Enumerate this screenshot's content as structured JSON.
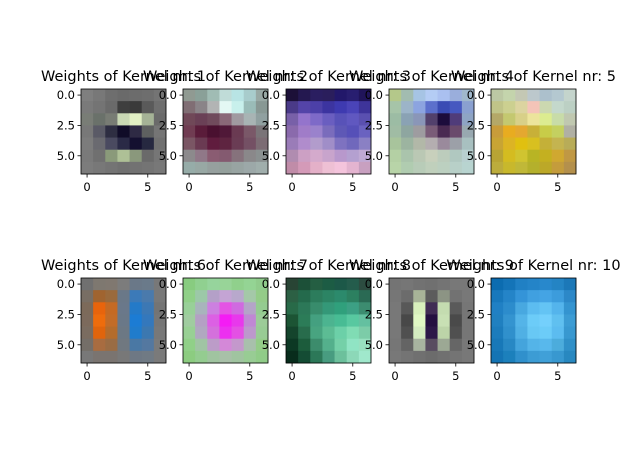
{
  "chart_data": {
    "type": "heatmap",
    "grid": false,
    "xlim": [
      -0.5,
      6.5
    ],
    "ylim": [
      6.5,
      -0.5
    ],
    "xticks": [
      "0",
      "5"
    ],
    "yticks": [
      "0.0",
      "2.5",
      "5.0"
    ],
    "kernels": [
      {
        "title": "Weights of Kernel nr: 1",
        "pixels": [
          [
            "#7f7f7f",
            "#787878",
            "#6e6e6e",
            "#6a6a6a",
            "#6c6c6c",
            "#6e6e6e",
            "#747474"
          ],
          [
            "#7a7a7a",
            "#747474",
            "#6a6a6a",
            "#3e3e3e",
            "#3a3a3a",
            "#5a5a5a",
            "#6e6e6e"
          ],
          [
            "#797d76",
            "#6a716a",
            "#787c74",
            "#c9d8b4",
            "#e2f0c4",
            "#a5b396",
            "#6a6a6a"
          ],
          [
            "#787878",
            "#5a5a66",
            "#2e2e42",
            "#100c28",
            "#2e2a44",
            "#5e6060",
            "#757575"
          ],
          [
            "#7c7c7c",
            "#6a6a70",
            "#4a4a60",
            "#2a2a46",
            "#141030",
            "#262840",
            "#707070"
          ],
          [
            "#7a7a7a",
            "#707070",
            "#8a9a7a",
            "#aec096",
            "#8a987c",
            "#6a6a6a",
            "#767676"
          ],
          [
            "#7c7c7c",
            "#787878",
            "#747474",
            "#707070",
            "#727272",
            "#747474",
            "#787878"
          ]
        ]
      },
      {
        "title": "Weights of Kernel nr: 2",
        "pixels": [
          [
            "#909a92",
            "#8aa098",
            "#a0bcb4",
            "#c0dcd8",
            "#b8e4e4",
            "#a8cccc",
            "#98a8a4"
          ],
          [
            "#806e74",
            "#8a8488",
            "#b2b4b4",
            "#e4f8f4",
            "#c8f0ec",
            "#9abcb8",
            "#889894"
          ],
          [
            "#704858",
            "#6a4056",
            "#704a5c",
            "#8a6878",
            "#a09aa0",
            "#a8b4b4",
            "#90a0a0"
          ],
          [
            "#703c52",
            "#5a1c3a",
            "#4a1030",
            "#501838",
            "#6a3a52",
            "#7a5868",
            "#7a7478"
          ],
          [
            "#7a5664",
            "#6a3a52",
            "#601c3e",
            "#5e2440",
            "#6a3c54",
            "#745064",
            "#7c6c74"
          ],
          [
            "#8c8a8c",
            "#907888",
            "#8a5c72",
            "#845a70",
            "#86727c",
            "#8a888a",
            "#8a9090"
          ],
          [
            "#96aca8",
            "#98a8a4",
            "#96a09e",
            "#94a09c",
            "#98a4a2",
            "#9ca8a8",
            "#a0aeac"
          ]
        ]
      },
      {
        "title": "Weights of Kernel nr: 3",
        "pixels": [
          [
            "#1c1038",
            "#241850",
            "#2a1e60",
            "#2a1e5c",
            "#22186a",
            "#281e70",
            "#20145a"
          ],
          [
            "#4a3a88",
            "#5444a8",
            "#4c40a8",
            "#3c34a0",
            "#3e3ab0",
            "#4a44b8",
            "#3e349a"
          ],
          [
            "#7860a8",
            "#9474cc",
            "#7e6ac8",
            "#6a5ec0",
            "#5852b8",
            "#6058c0",
            "#5a50b0"
          ],
          [
            "#8a6aac",
            "#a07cc8",
            "#9a82cc",
            "#7a6cbc",
            "#5e58b6",
            "#5650b8",
            "#6a62c0"
          ],
          [
            "#9a7cb8",
            "#b08ccc",
            "#b29ccc",
            "#a08ec8",
            "#7e72c0",
            "#7068bc",
            "#8a80c4"
          ],
          [
            "#b08cb0",
            "#cca0c4",
            "#d4aacc",
            "#c8a4cc",
            "#b898cc",
            "#b4a0d0",
            "#c0aad4"
          ],
          [
            "#c08ca8",
            "#d49ab8",
            "#e4b0c8",
            "#eec0d4",
            "#f4c4dc",
            "#e4b4d0",
            "#c8a0c0"
          ]
        ]
      },
      {
        "title": "Weights of Kernel nr: 4",
        "pixels": [
          [
            "#b4c88a",
            "#a2bcb0",
            "#a6c4e4",
            "#b4ccf4",
            "#aac0f0",
            "#9aaedc",
            "#a0b8cc"
          ],
          [
            "#a6c4a8",
            "#9cb4c8",
            "#8ca4e0",
            "#5c70cc",
            "#3a4cb4",
            "#4658c0",
            "#8aa0d0"
          ],
          [
            "#9cbca4",
            "#8aa2b4",
            "#8a96b8",
            "#52406c",
            "#1c0c3c",
            "#503c7a",
            "#8ea4c4"
          ],
          [
            "#a0bca4",
            "#8ea6a0",
            "#9e9ca0",
            "#7a5c78",
            "#4a2a52",
            "#6a4a6c",
            "#98a8b0"
          ],
          [
            "#a8c49c",
            "#9cb4a0",
            "#b2b8a8",
            "#b4aeb0",
            "#9a8a9c",
            "#9ca0a8",
            "#a8c0c0"
          ],
          [
            "#b4d0a4",
            "#aac4ac",
            "#bac8b4",
            "#c8d0bc",
            "#bcccbc",
            "#b0c8c0",
            "#b8d0d0"
          ],
          [
            "#b8d4a8",
            "#b0ccb0",
            "#b8ccb8",
            "#c0d0bc",
            "#bcd0c0",
            "#b8d0c8",
            "#b8d4d0"
          ]
        ]
      },
      {
        "title": "Weights of Kernel nr: 5",
        "pixels": [
          [
            "#bcc8a4",
            "#c4d4ac",
            "#c4c8b4",
            "#bcc8cc",
            "#acc0cc",
            "#b4c8d0",
            "#c4d4cc"
          ],
          [
            "#c0c488",
            "#ccd090",
            "#dcd4a0",
            "#f4c4b8",
            "#ccd8b0",
            "#c4d8cc",
            "#bcd0c4"
          ],
          [
            "#b4a868",
            "#c4c870",
            "#d8d088",
            "#ece49c",
            "#dcec90",
            "#c8dca8",
            "#c0c8b0"
          ],
          [
            "#c89c3a",
            "#e8ac20",
            "#e4a830",
            "#c8b038",
            "#c8cc48",
            "#c4d060",
            "#b0b0a4"
          ],
          [
            "#c8a434",
            "#dcb424",
            "#e0c010",
            "#d8c020",
            "#c4b038",
            "#c4b450",
            "#b8ac58"
          ],
          [
            "#b8a434",
            "#d4bc20",
            "#d0c430",
            "#b8b424",
            "#c4b020",
            "#d0a830",
            "#c09844"
          ],
          [
            "#bcac3c",
            "#c8b82c",
            "#c0b838",
            "#b4b02c",
            "#bca828",
            "#c49c3c",
            "#b4904c"
          ]
        ]
      },
      {
        "title": "Weights of Kernel nr: 6",
        "pixels": [
          [
            "#707070",
            "#7e7870",
            "#807870",
            "#7c7c7c",
            "#6a7888",
            "#6a7a8a",
            "#787878"
          ],
          [
            "#786e64",
            "#a06430",
            "#9a6a3c",
            "#6a7888",
            "#3c7ab8",
            "#4a7aac",
            "#787878"
          ],
          [
            "#7c6a5a",
            "#e8640c",
            "#c46a24",
            "#6a788a",
            "#247ac8",
            "#3c78b4",
            "#747474"
          ],
          [
            "#7c6a5c",
            "#ee6c0c",
            "#c26c28",
            "#6a7888",
            "#1c7cd4",
            "#3478bc",
            "#767676"
          ],
          [
            "#7a6c60",
            "#e0640c",
            "#b46c2c",
            "#6c7884",
            "#207ccc",
            "#3c78b0",
            "#787878"
          ],
          [
            "#746e68",
            "#a86c40",
            "#9a6c44",
            "#707880",
            "#4a78a4",
            "#5478a0",
            "#7a7a7a"
          ],
          [
            "#787878",
            "#7a7470",
            "#7a7470",
            "#787878",
            "#6e7884",
            "#707a84",
            "#7a7a7a"
          ]
        ]
      },
      {
        "title": "Weights of Kernel nr: 7",
        "pixels": [
          [
            "#88cc80",
            "#90d090",
            "#96d49c",
            "#98d498",
            "#90d08c",
            "#94d494",
            "#90cc8c"
          ],
          [
            "#90d088",
            "#9cc8a8",
            "#b4a0c8",
            "#c4a4d4",
            "#b8a8cc",
            "#a4c8a8",
            "#94cc88"
          ],
          [
            "#98d098",
            "#a8b4bc",
            "#cc80e0",
            "#e454e4",
            "#d06ae0",
            "#b4a4c8",
            "#94cc90"
          ],
          [
            "#a0cca0",
            "#b4a0c4",
            "#dc60e4",
            "#f41cf4",
            "#e838ec",
            "#c088d4",
            "#9ccc98"
          ],
          [
            "#98d094",
            "#b0a8c0",
            "#d470dc",
            "#ec30f0",
            "#e450e4",
            "#bc98cc",
            "#98cc94"
          ],
          [
            "#90d088",
            "#a0c4a4",
            "#bc9cc8",
            "#d488d8",
            "#c498cc",
            "#a8c0ac",
            "#94cc88"
          ],
          [
            "#8ccc80",
            "#94cc90",
            "#a0c4a0",
            "#a8c0a8",
            "#a0c4a0",
            "#98cc94",
            "#90cc88"
          ]
        ]
      },
      {
        "title": "Weights of Kernel nr: 8",
        "pixels": [
          [
            "#284434",
            "#1c5038",
            "#245e42",
            "#1c5c44",
            "#1c5848",
            "#245c4c",
            "#2c4c40"
          ],
          [
            "#2c6044",
            "#246a4c",
            "#2c7c5c",
            "#2c8464",
            "#2c8a6c",
            "#2c8060",
            "#2a6a54"
          ],
          [
            "#286a48",
            "#2c7858",
            "#388c6c",
            "#349878",
            "#30a07c",
            "#3ca084",
            "#3c8c70"
          ],
          [
            "#1c5434",
            "#2c7c58",
            "#44a080",
            "#4cb490",
            "#48bc94",
            "#58c8a0",
            "#64c0a0"
          ],
          [
            "#14442c",
            "#286c4c",
            "#48a480",
            "#5cbc94",
            "#6cd0a8",
            "#80dcb4",
            "#7ccca8"
          ],
          [
            "#0c3824",
            "#1c5c3c",
            "#3c8c6c",
            "#54b08c",
            "#74d0a8",
            "#90e4c4",
            "#98e0c0"
          ],
          [
            "#082c1c",
            "#144c34",
            "#2c7858",
            "#489c80",
            "#6cc09c",
            "#8cd8b8",
            "#a0e8cc"
          ]
        ]
      },
      {
        "title": "Weights of Kernel nr: 9",
        "pixels": [
          [
            "#747474",
            "#767676",
            "#727272",
            "#707070",
            "#747474",
            "#787878",
            "#787878"
          ],
          [
            "#767676",
            "#6c6c6c",
            "#a8b498",
            "#5c5c5c",
            "#8c9484",
            "#727272",
            "#787878"
          ],
          [
            "#787878",
            "#585858",
            "#d8f0bc",
            "#402c54",
            "#c4dcb0",
            "#5a5a5a",
            "#767676"
          ],
          [
            "#787878",
            "#484848",
            "#e0f8c4",
            "#241040",
            "#c8e0b4",
            "#4a4a4a",
            "#767676"
          ],
          [
            "#787878",
            "#505050",
            "#d4ecc0",
            "#2c1848",
            "#bcd4a8",
            "#505050",
            "#767676"
          ],
          [
            "#767676",
            "#646464",
            "#a8b4a0",
            "#584c60",
            "#9ca894",
            "#666666",
            "#787878"
          ],
          [
            "#787878",
            "#747474",
            "#707070",
            "#6c6c6c",
            "#707070",
            "#747474",
            "#787878"
          ]
        ]
      },
      {
        "title": "Weights of Kernel nr: 10",
        "pixels": [
          [
            "#0c6cb0",
            "#1474b8",
            "#2080c4",
            "#2484c8",
            "#2888cc",
            "#2484c4",
            "#1c78b8"
          ],
          [
            "#1878bc",
            "#2484c8",
            "#3494d8",
            "#40a0e0",
            "#44a4e4",
            "#3c9cdc",
            "#2c88c8"
          ],
          [
            "#2080c4",
            "#2c8ccc",
            "#48a8e0",
            "#5cbcf0",
            "#64c4f4",
            "#54b4ec",
            "#3494d0"
          ],
          [
            "#2080c0",
            "#3494d0",
            "#54b4e8",
            "#6cccf8",
            "#74d0fc",
            "#60c0f0",
            "#3c9cd4"
          ],
          [
            "#1c7cbc",
            "#3090cc",
            "#50b0e4",
            "#68c8f4",
            "#6cccf8",
            "#5cbcf0",
            "#3898d0"
          ],
          [
            "#1878b8",
            "#2888c4",
            "#44a4dc",
            "#54b4e8",
            "#58b8ec",
            "#4cacdc",
            "#3090c8"
          ],
          [
            "#1474b4",
            "#1c80bc",
            "#3090cc",
            "#3c9cd4",
            "#40a0d8",
            "#3898d0",
            "#2888c0"
          ]
        ]
      }
    ]
  }
}
